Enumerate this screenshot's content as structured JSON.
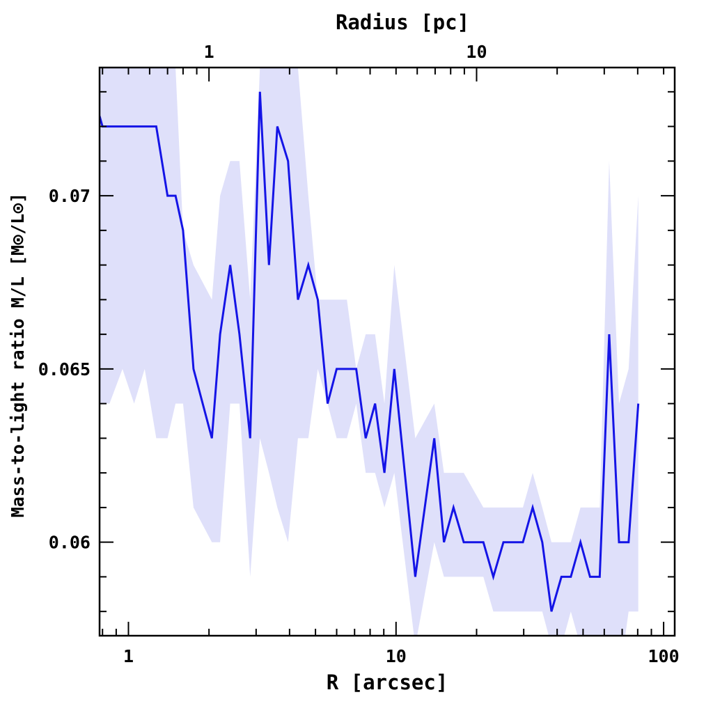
{
  "chart_data": {
    "type": "line",
    "xlabel": "R [arcsec]",
    "ylabel": "Mass-to-light ratio M/L [M⊙/L⊙]",
    "top_axis_label": "Radius [pc]",
    "x_scale": "log",
    "xlim": [
      0.78,
      110
    ],
    "ylim": [
      0.0573,
      0.0737
    ],
    "x_tick_labels": [
      "1",
      "10",
      "100"
    ],
    "x_ticks": [
      1,
      10,
      100
    ],
    "y_tick_labels": [
      "0.06",
      "0.065",
      "0.07"
    ],
    "y_ticks": [
      0.06,
      0.065,
      0.07
    ],
    "top_tick_labels": [
      "1",
      "10"
    ],
    "top_ticks_arcsec": [
      2.0,
      20.0
    ],
    "grid": false,
    "colors": {
      "line": "#1414e6",
      "band": "#dfe0fa",
      "axes": "#000000"
    },
    "series": [
      {
        "x": [
          0.78,
          0.8,
          0.85,
          0.95,
          1.05,
          1.15,
          1.27,
          1.4,
          1.5,
          1.6,
          1.75,
          2.05,
          2.2,
          2.4,
          2.6,
          2.85,
          3.1,
          3.35,
          3.6,
          3.95,
          4.3,
          4.7,
          5.1,
          5.55,
          6.0,
          6.55,
          7.1,
          7.7,
          8.35,
          9.05,
          9.85,
          11.8,
          13.9,
          15.1,
          16.4,
          17.9,
          21.2,
          23.1,
          25.2,
          29.8,
          32.4,
          35.2,
          38.1,
          41.5,
          45.0,
          48.9,
          53.1,
          57.7,
          62.6,
          68.1,
          74.0,
          80.4
        ],
        "y": [
          0.0723,
          0.072,
          0.072,
          0.072,
          0.072,
          0.072,
          0.072,
          0.07,
          0.07,
          0.069,
          0.065,
          0.063,
          0.066,
          0.068,
          0.066,
          0.063,
          0.073,
          0.068,
          0.072,
          0.071,
          0.067,
          0.068,
          0.067,
          0.064,
          0.065,
          0.065,
          0.065,
          0.063,
          0.064,
          0.062,
          0.065,
          0.059,
          0.063,
          0.06,
          0.061,
          0.06,
          0.06,
          0.059,
          0.06,
          0.06,
          0.061,
          0.06,
          0.058,
          0.059,
          0.059,
          0.06,
          0.059,
          0.059,
          0.066,
          0.06,
          0.06,
          0.064
        ],
        "y_lower": [
          0.064,
          0.064,
          0.064,
          0.065,
          0.064,
          0.065,
          0.063,
          0.063,
          0.064,
          0.064,
          0.061,
          0.06,
          0.06,
          0.064,
          0.064,
          0.059,
          0.063,
          0.062,
          0.061,
          0.06,
          0.063,
          0.063,
          0.065,
          0.064,
          0.063,
          0.063,
          0.064,
          0.062,
          0.062,
          0.061,
          0.062,
          0.057,
          0.06,
          0.059,
          0.059,
          0.059,
          0.059,
          0.058,
          0.058,
          0.058,
          0.058,
          0.058,
          0.057,
          0.057,
          0.058,
          0.057,
          0.057,
          0.056,
          0.056,
          0.056,
          0.058,
          0.058
        ],
        "y_upper": [
          0.0737,
          0.0737,
          0.0737,
          0.0737,
          0.0737,
          0.0737,
          0.0737,
          0.0737,
          0.0737,
          0.069,
          0.068,
          0.067,
          0.07,
          0.071,
          0.071,
          0.067,
          0.0737,
          0.0737,
          0.0737,
          0.0737,
          0.0737,
          0.07,
          0.067,
          0.067,
          0.067,
          0.067,
          0.065,
          0.066,
          0.066,
          0.064,
          0.068,
          0.063,
          0.064,
          0.062,
          0.062,
          0.062,
          0.061,
          0.061,
          0.061,
          0.061,
          0.062,
          0.061,
          0.06,
          0.06,
          0.06,
          0.061,
          0.061,
          0.061,
          0.071,
          0.064,
          0.065,
          0.07
        ]
      }
    ]
  }
}
